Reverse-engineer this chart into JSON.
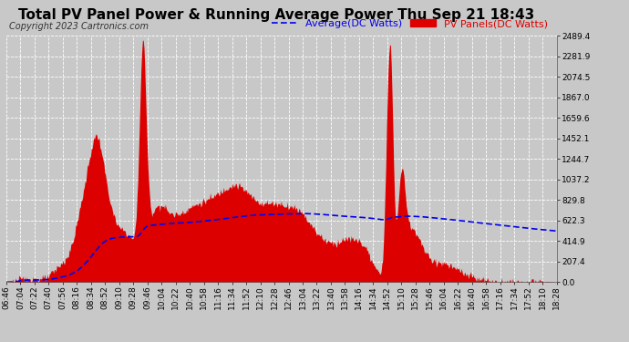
{
  "title": "Total PV Panel Power & Running Average Power Thu Sep 21 18:43",
  "copyright": "Copyright 2023 Cartronics.com",
  "legend_avg": "Average(DC Watts)",
  "legend_pv": "PV Panels(DC Watts)",
  "ylabel_values": [
    0.0,
    207.4,
    414.9,
    622.3,
    829.8,
    1037.2,
    1244.7,
    1452.1,
    1659.6,
    1867.0,
    2074.5,
    2281.9,
    2489.4
  ],
  "x_labels": [
    "06:46",
    "07:04",
    "07:22",
    "07:40",
    "07:56",
    "08:16",
    "08:34",
    "08:52",
    "09:10",
    "09:28",
    "09:46",
    "10:04",
    "10:22",
    "10:40",
    "10:58",
    "11:16",
    "11:34",
    "11:52",
    "12:10",
    "12:28",
    "12:46",
    "13:04",
    "13:22",
    "13:40",
    "13:58",
    "14:16",
    "14:34",
    "14:52",
    "15:10",
    "15:28",
    "15:46",
    "16:04",
    "16:22",
    "16:40",
    "16:58",
    "17:16",
    "17:34",
    "17:52",
    "18:10",
    "18:28"
  ],
  "ylim": [
    0,
    2489.4
  ],
  "bg_color": "#c8c8c8",
  "plot_bg_color": "#c8c8c8",
  "area_color": "#dd0000",
  "avg_line_color": "#0000ee",
  "title_color": "#000000",
  "copyright_color": "#333333",
  "grid_color": "#ffffff",
  "title_fontsize": 11,
  "copyright_fontsize": 7,
  "legend_fontsize": 8,
  "tick_fontsize": 6.5
}
